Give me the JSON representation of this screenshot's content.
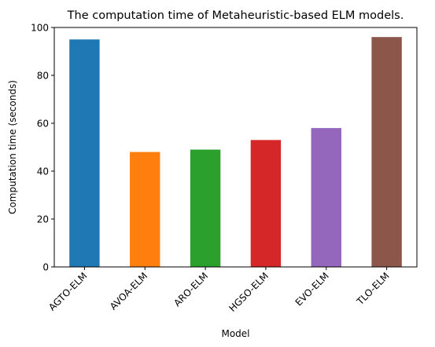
{
  "chart_data": {
    "type": "bar",
    "title": "The computation time of Metaheuristic-based ELM models.",
    "xlabel": "Model",
    "ylabel": "Computation time (seconds)",
    "categories": [
      "AGTO-ELM",
      "AVOA-ELM",
      "ARO-ELM",
      "HGSO-ELM",
      "EVO-ELM",
      "TLO-ELM"
    ],
    "values": [
      95,
      48,
      49,
      53,
      58,
      96
    ],
    "colors": [
      "#1f77b4",
      "#ff7f0e",
      "#2ca02c",
      "#d62728",
      "#9467bd",
      "#8c564b"
    ],
    "ylim": [
      0,
      100
    ],
    "yticks": [
      0,
      20,
      40,
      60,
      80,
      100
    ],
    "grid": false,
    "legend": "none"
  }
}
